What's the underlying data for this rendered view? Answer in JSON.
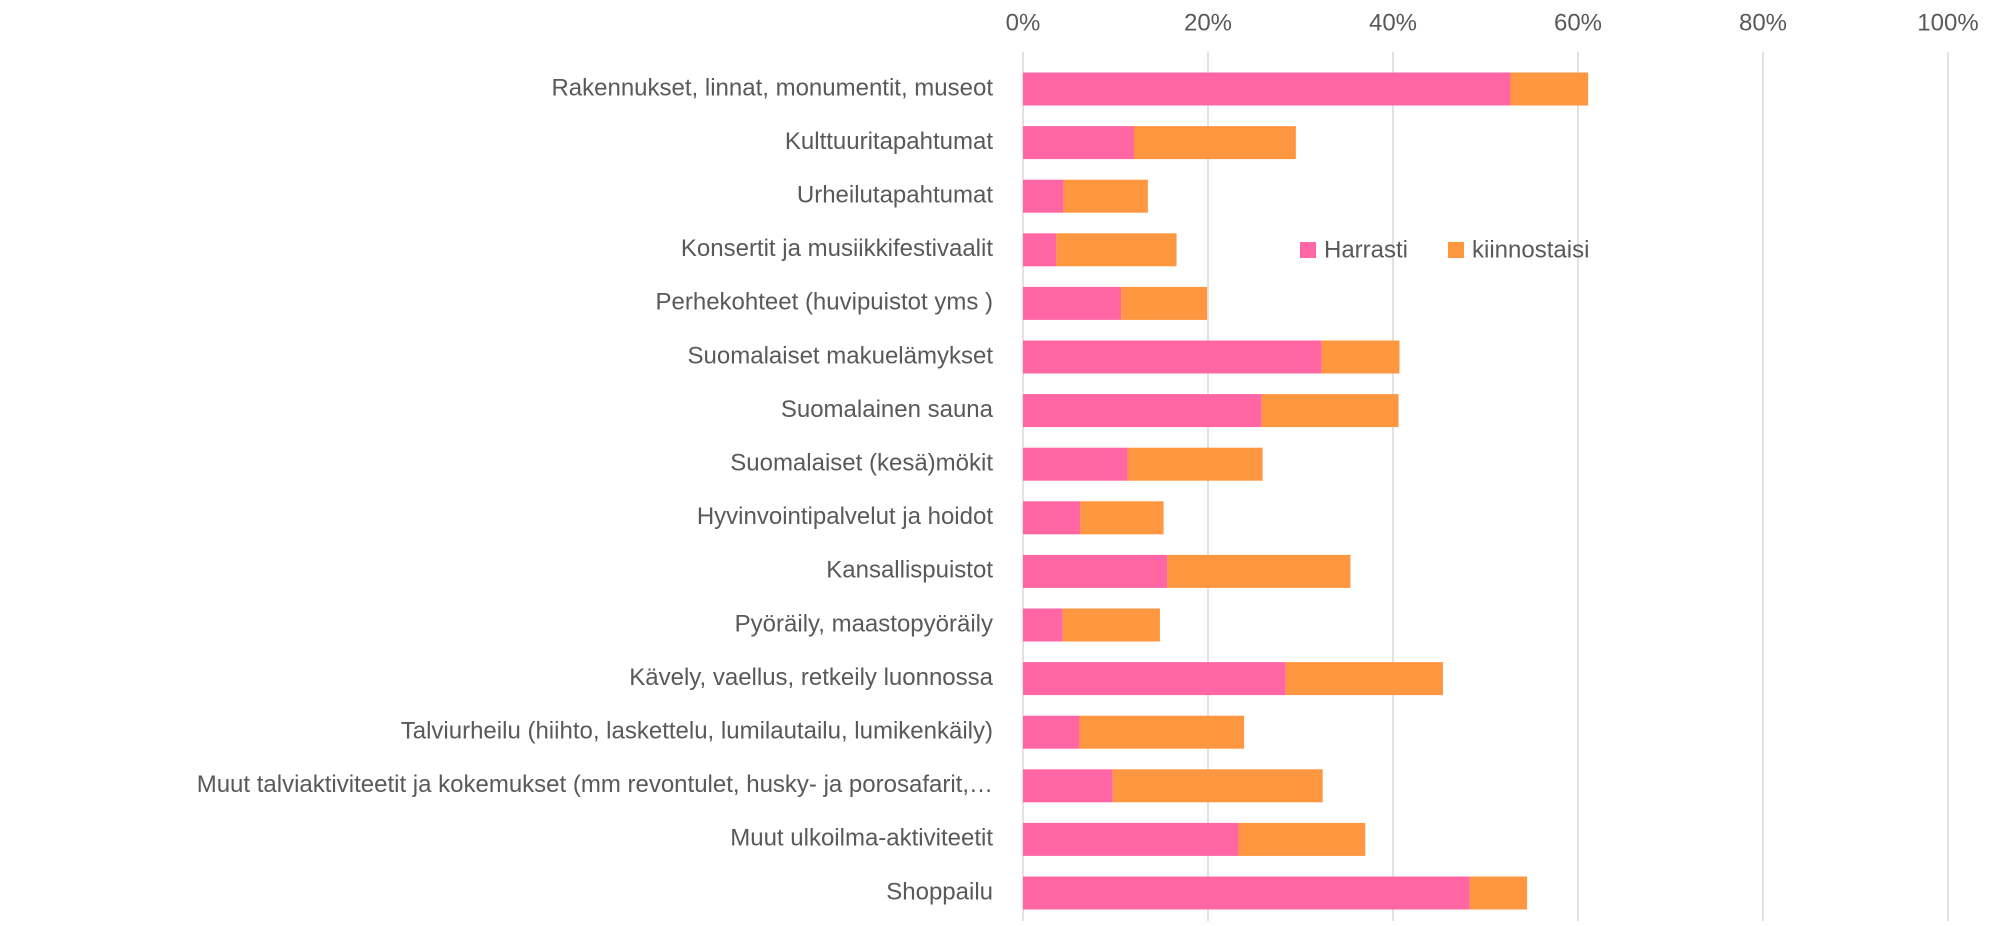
{
  "chart_data": {
    "type": "stacked_barh",
    "categories": [
      "Rakennukset, linnat, monumentit, museot",
      "Kulttuuritapahtumat",
      "Urheilutapahtumat",
      "Konsertit ja musiikkifestivaalit",
      "Perhekohteet (huvipuistot yms )",
      "Suomalaiset makuelämykset",
      "Suomalainen sauna",
      "Suomalaiset (kesä)mökit",
      "Hyvinvointipalvelut ja hoidot",
      "Kansallispuistot",
      "Pyöräily, maastopyöräily",
      "Kävely, vaellus, retkeily luonnossa",
      "Talviurheilu (hiihto, laskettelu, lumilautailu, lumikenkäily)",
      "Muut talviaktiviteetit ja kokemukset (mm  revontulet, husky- ja porosafarit,…",
      "Muut ulkoilma-aktiviteetit",
      "Shoppailu"
    ],
    "series": [
      {
        "name": "Harrasti",
        "color": "#ff66a3",
        "values": [
          52.7,
          12.0,
          4.4,
          3.6,
          10.6,
          32.3,
          25.8,
          11.3,
          6.2,
          15.6,
          4.3,
          28.4,
          6.1,
          9.7,
          23.3,
          48.3
        ]
      },
      {
        "name": "kiinnostaisi",
        "color": "#ff9640",
        "values": [
          8.4,
          17.5,
          9.1,
          13.0,
          9.3,
          8.4,
          14.8,
          14.6,
          9.0,
          19.8,
          10.5,
          17.0,
          17.8,
          22.7,
          13.7,
          6.2
        ]
      }
    ],
    "xlim": [
      0,
      100
    ],
    "xticks": [
      {
        "value": 0,
        "label": "0%"
      },
      {
        "value": 20,
        "label": "20%"
      },
      {
        "value": 40,
        "label": "40%"
      },
      {
        "value": 60,
        "label": "60%"
      },
      {
        "value": 80,
        "label": "80%"
      },
      {
        "value": 100,
        "label": "100%"
      }
    ],
    "grid": true
  }
}
